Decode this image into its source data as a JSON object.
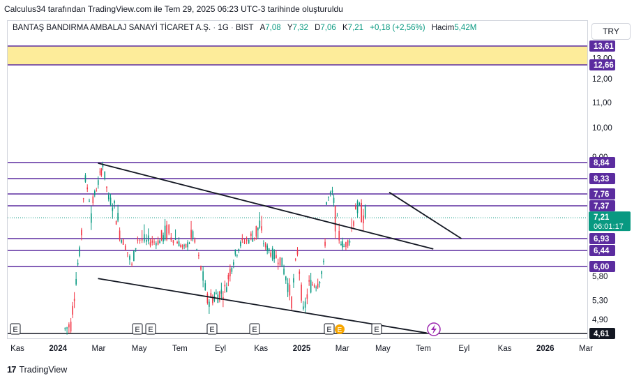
{
  "attribution": "Calculus34 tarafından TradingView.com ile Tem 29, 2025 06:23 UTC-3 tarihinde oluşturuldu",
  "header": {
    "symbol": "BANTAŞ BANDIRMA AMBALAJ SANAYİ TİCARET A.Ş.",
    "interval": "1G",
    "exchange": "BIST",
    "open_label": "A",
    "open": "7,08",
    "high_label": "Y",
    "high": "7,32",
    "low_label": "D",
    "low": "7,06",
    "close_label": "K",
    "close": "7,21",
    "change": "+0,18 (+2,56%)",
    "volume_label": "Hacim",
    "volume": "5,42M"
  },
  "currency_button": "TRY",
  "footer_logo": "TradingView",
  "colors": {
    "up": "#089981",
    "down": "#f23645",
    "level": "#5b2c9f",
    "zone": "#fdec9a",
    "trend": "#131722"
  },
  "chart_data": {
    "type": "candlestick",
    "title": "",
    "x_ticks": [
      "Kas",
      "2024",
      "Mar",
      "May",
      "Tem",
      "Eyl",
      "Kas",
      "2025",
      "Mar",
      "May",
      "Tem",
      "Eyl",
      "Kas",
      "2026",
      "Mar"
    ],
    "y_ticks": [
      "13,00",
      "12,00",
      "11,00",
      "10,00",
      "9,00",
      "8,30",
      "5,80",
      "5,30",
      "4,90"
    ],
    "ylim": [
      4.55,
      13.9
    ],
    "horizontal_levels": [
      "13,61",
      "12,66",
      "8,84",
      "8,33",
      "7,76",
      "7,37",
      "6,93",
      "6,44",
      "6,00",
      "4,61"
    ],
    "resistance_zone": [
      "12,66",
      "13,61"
    ],
    "last_price": {
      "value": "7,21",
      "countdown": "06:01:17"
    },
    "earnings_marker": "E",
    "earnings_markers_count": 8,
    "trendlines": [
      {
        "from": [
          "2024-03-10",
          8.82
        ],
        "to": [
          "2025-07-25",
          6.5
        ]
      },
      {
        "from": [
          "2024-03-10",
          5.75
        ],
        "to": [
          "2025-07-15",
          4.62
        ]
      },
      {
        "from": [
          "2025-05-20",
          7.82
        ],
        "to": [
          "2025-09-05",
          6.93
        ]
      }
    ],
    "price_path": [
      [
        0.1,
        4.7
      ],
      [
        0.11,
        4.8
      ],
      [
        0.125,
        6.4
      ],
      [
        0.135,
        8.3
      ],
      [
        0.145,
        7.3
      ],
      [
        0.16,
        8.4
      ],
      [
        0.165,
        8.8
      ],
      [
        0.175,
        7.6
      ],
      [
        0.185,
        7.4
      ],
      [
        0.2,
        6.8
      ],
      [
        0.215,
        6.0
      ],
      [
        0.225,
        6.9
      ],
      [
        0.24,
        6.8
      ],
      [
        0.26,
        6.8
      ],
      [
        0.275,
        7.0
      ],
      [
        0.29,
        6.9
      ],
      [
        0.305,
        6.5
      ],
      [
        0.32,
        7.0
      ],
      [
        0.33,
        6.2
      ],
      [
        0.345,
        5.3
      ],
      [
        0.36,
        5.4
      ],
      [
        0.375,
        5.5
      ],
      [
        0.39,
        6.2
      ],
      [
        0.405,
        6.8
      ],
      [
        0.42,
        6.9
      ],
      [
        0.435,
        7.1
      ],
      [
        0.445,
        6.6
      ],
      [
        0.46,
        6.3
      ],
      [
        0.47,
        6.2
      ],
      [
        0.48,
        5.8
      ],
      [
        0.49,
        5.3
      ],
      [
        0.5,
        6.4
      ],
      [
        0.51,
        5.0
      ],
      [
        0.52,
        5.6
      ],
      [
        0.535,
        5.7
      ],
      [
        0.545,
        6.0
      ],
      [
        0.55,
        7.5
      ],
      [
        0.56,
        7.8
      ],
      [
        0.565,
        7.2
      ],
      [
        0.575,
        6.8
      ],
      [
        0.58,
        6.6
      ],
      [
        0.59,
        6.9
      ],
      [
        0.6,
        7.4
      ],
      [
        0.61,
        7.3
      ],
      [
        0.62,
        7.21
      ]
    ]
  }
}
